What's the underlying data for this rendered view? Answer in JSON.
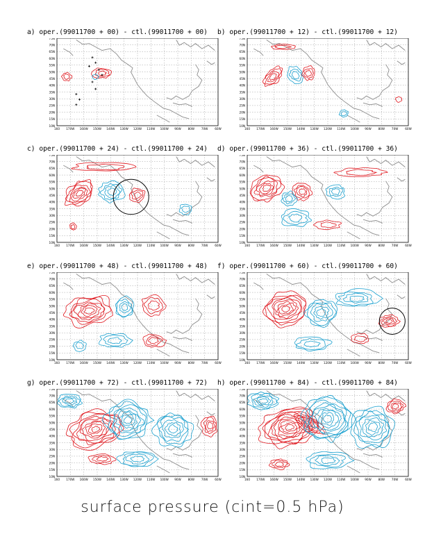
{
  "panels": [
    {
      "title": "a) oper.(99011700 + 00) - ctl.(99011700 + 00)"
    },
    {
      "title": "b) oper.(99011700 + 12) - ctl.(99011700 + 12)"
    },
    {
      "title": "c) oper.(99011700 + 24) - ctl.(99011700 + 24)"
    },
    {
      "title": "d) oper.(99011700 + 36) - ctl.(99011700 + 36)"
    },
    {
      "title": "e) oper.(99011700 + 48) - ctl.(99011700 + 48)"
    },
    {
      "title": "f) oper.(99011700 + 60) - ctl.(99011700 + 60)"
    },
    {
      "title": "g) oper.(99011700 + 72) - ctl.(99011700 + 72)"
    },
    {
      "title": "h) oper.(99011700 + 84) - ctl.(99011700 + 84)"
    }
  ],
  "map_axes": {
    "lat_labels": [
      "75N",
      "70N",
      "65N",
      "60N",
      "55N",
      "50N",
      "45N",
      "40N",
      "35N",
      "30N",
      "25N",
      "20N",
      "15N",
      "10N"
    ],
    "lon_labels": [
      "160",
      "170W",
      "160W",
      "150W",
      "140W",
      "130W",
      "120W",
      "110W",
      "100W",
      "90W",
      "80W",
      "70W",
      "60W"
    ]
  },
  "colors": {
    "positive": "#e0161d",
    "negative": "#1aa0cf",
    "coast": "#8c8c8c",
    "grid": "#9a9a9a",
    "marker": "#000000"
  },
  "bottom_label": "surface pressure (cint=0.5 hPa)"
}
